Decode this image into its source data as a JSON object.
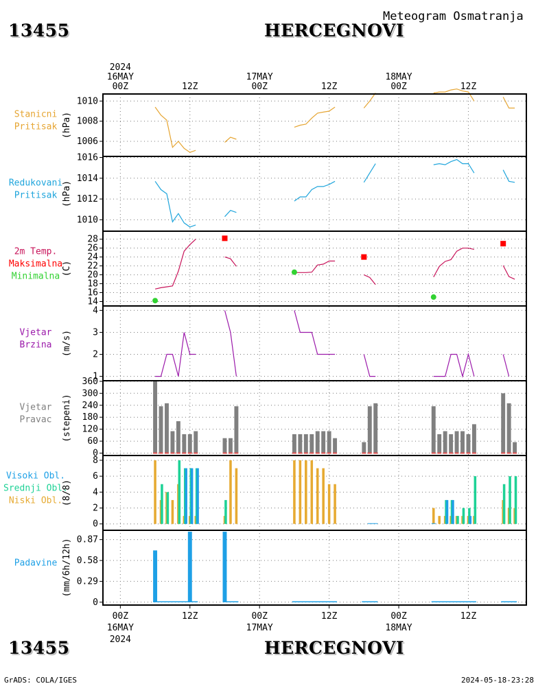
{
  "header": {
    "station_id": "13455",
    "station_name": "HERCEGNOVI",
    "subtitle": "Meteogram Osmatranja"
  },
  "footer": {
    "station_id": "13455",
    "station_name": "HERCEGNOVI",
    "credit": "GrADS: COLA/IGES",
    "timestamp": "2024-05-18-23:28"
  },
  "time_axis": {
    "top_labels": [
      {
        "hour": 0,
        "lines": [
          "2024",
          "16MAY",
          "00Z"
        ]
      },
      {
        "hour": 12,
        "lines": [
          "12Z"
        ]
      },
      {
        "hour": 24,
        "lines": [
          "17MAY",
          "00Z"
        ]
      },
      {
        "hour": 36,
        "lines": [
          "12Z"
        ]
      },
      {
        "hour": 48,
        "lines": [
          "18MAY",
          "00Z"
        ]
      },
      {
        "hour": 60,
        "lines": [
          "12Z"
        ]
      }
    ],
    "bottom_labels": [
      {
        "hour": 0,
        "lines": [
          "00Z",
          "16MAY",
          "2024"
        ]
      },
      {
        "hour": 12,
        "lines": [
          "12Z"
        ]
      },
      {
        "hour": 24,
        "lines": [
          "00Z",
          "17MAY"
        ]
      },
      {
        "hour": 36,
        "lines": [
          "12Z"
        ]
      },
      {
        "hour": 48,
        "lines": [
          "00Z",
          "18MAY"
        ]
      },
      {
        "hour": 60,
        "lines": [
          "12Z"
        ]
      }
    ],
    "range_hours": [
      -3,
      70
    ]
  },
  "colors": {
    "station_pressure": "#e6a532",
    "reduced_pressure": "#1fa5dc",
    "temperature": "#c8145a",
    "tmax": "#ff0000",
    "tmin": "#32d232",
    "wind": "#9b19aa",
    "wind_dir_bar": "#808080",
    "wind_dir_base": "#e05050",
    "cloud_high": "#1ea0e6",
    "cloud_mid": "#1ed296",
    "cloud_low": "#e6aa32",
    "precip": "#1ea0e6"
  },
  "chart_data": [
    {
      "type": "line",
      "labels": [
        "Stanicni",
        "Pritisak"
      ],
      "ylabel": "(hPa)",
      "yticks": [
        1006,
        1008,
        1010
      ],
      "ylim": [
        1004.5,
        1010.7
      ],
      "color_key": "station_pressure",
      "segments": [
        [
          [
            6,
            1009.4
          ],
          [
            7,
            1008.6
          ],
          [
            8,
            1008.1
          ],
          [
            9,
            1005.4
          ],
          [
            10,
            1006.0
          ],
          [
            11,
            1005.3
          ],
          [
            12,
            1004.9
          ],
          [
            13,
            1005.1
          ]
        ],
        [
          [
            18,
            1005.9
          ],
          [
            19,
            1006.4
          ],
          [
            20,
            1006.2
          ]
        ],
        [
          [
            30,
            1007.4
          ],
          [
            31,
            1007.6
          ],
          [
            32,
            1007.7
          ],
          [
            33,
            1008.3
          ],
          [
            34,
            1008.8
          ],
          [
            35,
            1008.9
          ],
          [
            36,
            1009.0
          ],
          [
            37,
            1009.4
          ]
        ],
        [
          [
            42,
            1009.3
          ],
          [
            43,
            1010.0
          ],
          [
            44,
            1010.8
          ]
        ],
        [
          [
            54,
            1010.8
          ],
          [
            55,
            1010.9
          ],
          [
            56,
            1010.9
          ],
          [
            57,
            1011.1
          ],
          [
            58,
            1011.2
          ],
          [
            59,
            1011.0
          ],
          [
            60,
            1010.9
          ],
          [
            61,
            1010.0
          ]
        ],
        [
          [
            66,
            1010.4
          ],
          [
            67,
            1009.3
          ],
          [
            68,
            1009.3
          ]
        ]
      ]
    },
    {
      "type": "line",
      "labels": [
        "Redukovani",
        "Pritisak"
      ],
      "ylabel": "(hPa)",
      "yticks": [
        1010,
        1012,
        1014,
        1016
      ],
      "ylim": [
        1008.9,
        1016.1
      ],
      "color_key": "reduced_pressure",
      "segments": [
        [
          [
            6,
            1013.7
          ],
          [
            7,
            1012.9
          ],
          [
            8,
            1012.5
          ],
          [
            9,
            1009.8
          ],
          [
            10,
            1010.6
          ],
          [
            11,
            1009.7
          ],
          [
            12,
            1009.3
          ],
          [
            13,
            1009.5
          ]
        ],
        [
          [
            18,
            1010.3
          ],
          [
            19,
            1010.9
          ],
          [
            20,
            1010.7
          ]
        ],
        [
          [
            30,
            1011.8
          ],
          [
            31,
            1012.2
          ],
          [
            32,
            1012.2
          ],
          [
            33,
            1012.9
          ],
          [
            34,
            1013.2
          ],
          [
            35,
            1013.2
          ],
          [
            36,
            1013.4
          ],
          [
            37,
            1013.7
          ]
        ],
        [
          [
            42,
            1013.6
          ],
          [
            43,
            1014.5
          ],
          [
            44,
            1015.4
          ]
        ],
        [
          [
            54,
            1015.3
          ],
          [
            55,
            1015.4
          ],
          [
            56,
            1015.3
          ],
          [
            57,
            1015.6
          ],
          [
            58,
            1015.8
          ],
          [
            59,
            1015.4
          ],
          [
            60,
            1015.4
          ],
          [
            61,
            1014.5
          ]
        ],
        [
          [
            66,
            1014.8
          ],
          [
            67,
            1013.7
          ],
          [
            68,
            1013.6
          ]
        ]
      ]
    },
    {
      "type": "line",
      "labels": [
        "2m Temp.",
        "Maksimalna",
        "Minimalna"
      ],
      "label_color_keys": [
        "temperature",
        "tmax",
        "tmin"
      ],
      "ylabel": "(C)",
      "yticks": [
        14,
        16,
        18,
        20,
        22,
        24,
        26,
        28
      ],
      "ylim": [
        13.0,
        29.8
      ],
      "color_key": "temperature",
      "segments": [
        [
          [
            6,
            16.8
          ],
          [
            7,
            17.1
          ],
          [
            8,
            17.3
          ],
          [
            9,
            17.5
          ],
          [
            10,
            20.8
          ],
          [
            11,
            25.3
          ],
          [
            12,
            26.8
          ],
          [
            13,
            28.0
          ]
        ],
        [
          [
            18,
            24.0
          ],
          [
            19,
            23.6
          ],
          [
            20,
            21.9
          ]
        ],
        [
          [
            30,
            20.5
          ],
          [
            31,
            20.5
          ],
          [
            32,
            20.5
          ],
          [
            33,
            20.6
          ],
          [
            34,
            22.2
          ],
          [
            35,
            22.4
          ],
          [
            36,
            23.1
          ],
          [
            37,
            23.1
          ]
        ],
        [
          [
            42,
            20.0
          ],
          [
            43,
            19.4
          ],
          [
            44,
            17.8
          ]
        ],
        [
          [
            54,
            19.5
          ],
          [
            55,
            21.9
          ],
          [
            56,
            23.0
          ],
          [
            57,
            23.4
          ],
          [
            58,
            25.3
          ],
          [
            59,
            26.0
          ],
          [
            60,
            26.0
          ],
          [
            61,
            25.7
          ]
        ],
        [
          [
            66,
            22.1
          ],
          [
            67,
            19.6
          ],
          [
            68,
            19.0
          ]
        ]
      ],
      "tmax_points": [
        [
          18,
          28.2
        ],
        [
          42,
          24.0
        ],
        [
          66,
          27.0
        ]
      ],
      "tmin_points": [
        [
          6,
          14.2
        ],
        [
          30,
          20.6
        ],
        [
          54,
          15.0
        ]
      ]
    },
    {
      "type": "line",
      "labels": [
        "Vjetar",
        "Brzina"
      ],
      "ylabel": "(m/s)",
      "yticks": [
        1,
        2,
        3,
        4
      ],
      "ylim": [
        0.8,
        4.2
      ],
      "color_key": "wind",
      "segments": [
        [
          [
            6,
            1
          ],
          [
            7,
            1
          ],
          [
            8,
            2
          ],
          [
            9,
            2
          ],
          [
            10,
            1
          ],
          [
            11,
            3
          ],
          [
            12,
            2
          ],
          [
            13,
            2
          ]
        ],
        [
          [
            18,
            4
          ],
          [
            19,
            3
          ],
          [
            20,
            1
          ]
        ],
        [
          [
            30,
            4
          ],
          [
            31,
            3
          ],
          [
            32,
            3
          ],
          [
            33,
            3
          ],
          [
            34,
            2
          ],
          [
            35,
            2
          ],
          [
            36,
            2
          ],
          [
            37,
            2
          ]
        ],
        [
          [
            42,
            2
          ],
          [
            43,
            1
          ],
          [
            44,
            1
          ]
        ],
        [
          [
            54,
            1
          ],
          [
            55,
            1
          ],
          [
            56,
            1
          ],
          [
            57,
            2
          ],
          [
            58,
            2
          ],
          [
            59,
            1
          ],
          [
            60,
            2
          ],
          [
            61,
            1
          ]
        ],
        [
          [
            66,
            2
          ],
          [
            67,
            1
          ]
        ]
      ]
    },
    {
      "type": "bar",
      "labels": [
        "Vjetar",
        "Pravac"
      ],
      "ylabel": "(stepeni)",
      "yticks": [
        0,
        60,
        120,
        180,
        240,
        300,
        360
      ],
      "ylim": [
        -12,
        363
      ],
      "color_key": "wind_dir_bar",
      "x": [
        6,
        7,
        8,
        9,
        10,
        11,
        12,
        13,
        18,
        19,
        20,
        30,
        31,
        32,
        33,
        34,
        35,
        36,
        37,
        42,
        43,
        44,
        54,
        55,
        56,
        57,
        58,
        59,
        60,
        61,
        66,
        67,
        68
      ],
      "values": [
        360,
        235,
        250,
        110,
        160,
        95,
        95,
        110,
        75,
        75,
        235,
        95,
        95,
        95,
        95,
        110,
        110,
        110,
        75,
        55,
        235,
        250,
        235,
        95,
        110,
        95,
        110,
        110,
        95,
        145,
        300,
        250,
        55
      ]
    },
    {
      "type": "bar",
      "labels": [
        "Visoki Obl.",
        "Srednji Obl.",
        "Niski Obl."
      ],
      "label_color_keys": [
        "cloud_high",
        "cloud_mid",
        "cloud_low"
      ],
      "ylabel": "(8/8)",
      "yticks": [
        0,
        2,
        4,
        6,
        8
      ],
      "ylim": [
        -0.8,
        8.6
      ],
      "series": [
        {
          "key": "low",
          "color_key": "cloud_low",
          "x": [
            6,
            7,
            8,
            9,
            10,
            11,
            12,
            13,
            18,
            19,
            20,
            30,
            31,
            32,
            33,
            34,
            35,
            36,
            37,
            54,
            55,
            56,
            57,
            58,
            59,
            60,
            61,
            66,
            67,
            68
          ],
          "values": [
            8,
            3,
            4,
            3,
            5,
            1,
            1,
            1,
            1,
            8,
            7,
            8,
            8,
            8,
            8,
            7,
            7,
            5,
            5,
            2,
            1,
            1,
            1,
            1,
            1,
            1,
            1,
            3,
            2,
            2
          ]
        },
        {
          "key": "mid",
          "color_key": "cloud_mid",
          "x": [
            7,
            8,
            10,
            11,
            12,
            13,
            18,
            56,
            57,
            58,
            59,
            60,
            61,
            66,
            67,
            68
          ],
          "values": [
            5,
            4,
            8,
            7,
            7,
            7,
            3,
            3,
            3,
            1,
            2,
            2,
            6,
            5,
            6,
            6
          ]
        },
        {
          "key": "high",
          "color_key": "cloud_high",
          "x": [
            11,
            12,
            13,
            56,
            57,
            60
          ],
          "values": [
            7,
            7,
            7,
            3,
            3,
            1
          ]
        }
      ]
    },
    {
      "type": "bar",
      "labels": [
        "Padavine"
      ],
      "ylabel": "(mm/6h/12h)",
      "yticks": [
        0,
        0.29,
        0.58,
        0.87
      ],
      "ytick_labels": [
        "0",
        "0.29",
        "0.58",
        "0.87"
      ],
      "ylim": [
        -0.04,
        1.0
      ],
      "color_key": "precip",
      "x": [
        6,
        12,
        18
      ],
      "values": [
        0.72,
        0.98,
        0.98
      ],
      "baseline_ranges": [
        [
          6,
          13
        ],
        [
          18,
          20
        ],
        [
          30,
          37
        ],
        [
          42,
          44
        ],
        [
          54,
          61
        ],
        [
          66,
          68
        ]
      ]
    }
  ]
}
